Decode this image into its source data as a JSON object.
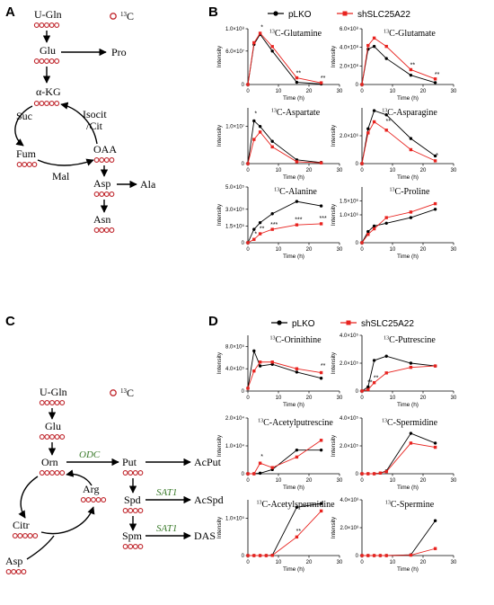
{
  "panels": {
    "A": "A",
    "B": "B",
    "C": "C",
    "D": "D"
  },
  "isotope_label": "13C",
  "colors": {
    "pLKO": "#000000",
    "shSLC25A22": "#e8231f",
    "carbon": "#c0272d",
    "enzyme": "#3a7a2a"
  },
  "legend": {
    "series1": "pLKO",
    "series2": "shSLC25A22"
  },
  "pathwayA": {
    "nodes": [
      {
        "id": "ugln",
        "label": "U-Gln",
        "circles": 5
      },
      {
        "id": "glu",
        "label": "Glu",
        "circles": 5
      },
      {
        "id": "pro",
        "label": "Pro",
        "circles": 0
      },
      {
        "id": "akg",
        "label": "α-KG",
        "circles": 5
      },
      {
        "id": "suc",
        "label": "Suc",
        "circles": 0
      },
      {
        "id": "isocit",
        "label": "Isocit",
        "circles": 0
      },
      {
        "id": "cit",
        "label": "/Cit",
        "circles": 0
      },
      {
        "id": "fum",
        "label": "Fum",
        "circles": 4
      },
      {
        "id": "oaa",
        "label": "OAA",
        "circles": 4
      },
      {
        "id": "mal",
        "label": "Mal",
        "circles": 0
      },
      {
        "id": "asp",
        "label": "Asp",
        "circles": 4
      },
      {
        "id": "ala",
        "label": "Ala",
        "circles": 0
      },
      {
        "id": "asn",
        "label": "Asn",
        "circles": 4
      }
    ]
  },
  "pathwayC": {
    "nodes": [
      {
        "id": "ugln",
        "label": "U-Gln",
        "circles": 5
      },
      {
        "id": "glu",
        "label": "Glu",
        "circles": 5
      },
      {
        "id": "orn",
        "label": "Orn",
        "circles": 5
      },
      {
        "id": "put",
        "label": "Put",
        "circles": 4
      },
      {
        "id": "acput",
        "label": "AcPut",
        "circles": 0
      },
      {
        "id": "arg",
        "label": "Arg",
        "circles": 5
      },
      {
        "id": "spd",
        "label": "Spd",
        "circles": 4
      },
      {
        "id": "acspd",
        "label": "AcSpd",
        "circles": 0
      },
      {
        "id": "citr",
        "label": "Citr",
        "circles": 5
      },
      {
        "id": "asp",
        "label": "Asp",
        "circles": 4
      },
      {
        "id": "spm",
        "label": "Spm",
        "circles": 4
      },
      {
        "id": "das",
        "label": "DAS",
        "circles": 0
      }
    ],
    "enzymes": [
      "ODC",
      "SAT1",
      "SAT1"
    ]
  },
  "chart_data": [
    {
      "id": "glutamine",
      "type": "line",
      "title_main": "C-Glutamine",
      "xlabel": "Time (h)",
      "ylabel": "Intensity",
      "xlim": [
        0,
        30
      ],
      "xticks": [
        "0",
        "10",
        "20",
        "30"
      ],
      "ylim": [
        0,
        100000000.0
      ],
      "yticks": [
        {
          "v": 0,
          "t": "0"
        },
        {
          "v": 60000000.0,
          "t": "6.0×10⁷"
        },
        {
          "v": 100000000.0,
          "t": "1.0×10⁸"
        }
      ],
      "x": [
        0,
        2,
        4,
        8,
        16,
        24
      ],
      "series": [
        {
          "name": "pLKO",
          "values": [
            0,
            72000000.0,
            90000000.0,
            60000000.0,
            4000000.0,
            1000000.0
          ]
        },
        {
          "name": "shSLC25A22",
          "values": [
            0,
            75000000.0,
            92000000.0,
            68000000.0,
            12000000.0,
            3000000.0
          ]
        }
      ],
      "sig": [
        {
          "x": 4,
          "y": 99000000.0,
          "t": "*"
        },
        {
          "x": 16,
          "y": 17000000.0,
          "t": "**"
        },
        {
          "x": 24,
          "y": 8000000.0,
          "t": "**"
        }
      ]
    },
    {
      "id": "glutamate",
      "type": "line",
      "title_main": "C-Glutamate",
      "xlabel": "Time (h)",
      "ylabel": "Intensity",
      "xlim": [
        0,
        30
      ],
      "xticks": [
        "0",
        "10",
        "20",
        "30"
      ],
      "ylim": [
        0,
        600000000.0
      ],
      "yticks": [
        {
          "v": 0,
          "t": "0"
        },
        {
          "v": 200000000.0,
          "t": "2.0×10⁸"
        },
        {
          "v": 400000000.0,
          "t": "4.0×10⁸"
        },
        {
          "v": 600000000.0,
          "t": "6.0×10⁸"
        }
      ],
      "x": [
        0,
        2,
        4,
        8,
        16,
        24
      ],
      "series": [
        {
          "name": "pLKO",
          "values": [
            0,
            380000000.0,
            410000000.0,
            280000000.0,
            100000000.0,
            20000000.0
          ]
        },
        {
          "name": "shSLC25A22",
          "values": [
            0,
            420000000.0,
            500000000.0,
            410000000.0,
            160000000.0,
            60000000.0
          ]
        }
      ],
      "sig": [
        {
          "x": 16,
          "y": 190000000.0,
          "t": "**"
        },
        {
          "x": 24,
          "y": 85000000.0,
          "t": "**"
        }
      ]
    },
    {
      "id": "aspartate",
      "type": "line",
      "title_main": "C-Aspartate",
      "xlabel": "Time (h)",
      "ylabel": "Intensity",
      "xlim": [
        0,
        30
      ],
      "xticks": [
        "0",
        "10",
        "20",
        "30"
      ],
      "ylim": [
        0,
        15000000.0
      ],
      "yticks": [
        {
          "v": 0,
          "t": "0"
        },
        {
          "v": 10000000.0,
          "t": "1.0×10⁷"
        }
      ],
      "x": [
        0,
        2,
        4,
        8,
        16,
        24
      ],
      "series": [
        {
          "name": "pLKO",
          "values": [
            0,
            11500000.0,
            10000000.0,
            6000000.0,
            1000000.0,
            300000.0
          ]
        },
        {
          "name": "shSLC25A22",
          "values": [
            0,
            6500000.0,
            8500000.0,
            4500000.0,
            500000.0,
            200000.0
          ]
        }
      ],
      "sig": [
        {
          "x": 2,
          "y": 13000000.0,
          "t": "*"
        }
      ]
    },
    {
      "id": "asparagine",
      "type": "line",
      "title_main": "C-Asparagine",
      "xlabel": "Time (h)",
      "ylabel": "Intensity",
      "xlim": [
        0,
        30
      ],
      "xticks": [
        "0",
        "10",
        "20",
        "30"
      ],
      "ylim": [
        0,
        4000000.0
      ],
      "yticks": [
        {
          "v": 0,
          "t": "0"
        },
        {
          "v": 2000000.0,
          "t": "2.0×10⁶"
        }
      ],
      "x": [
        0,
        2,
        4,
        8,
        16,
        24
      ],
      "series": [
        {
          "name": "pLKO",
          "values": [
            0,
            2500000.0,
            3800000.0,
            3500000.0,
            1800000.0,
            550000.0
          ]
        },
        {
          "name": "shSLC25A22",
          "values": [
            0,
            2200000.0,
            3000000.0,
            2400000.0,
            1000000.0,
            200000.0
          ]
        }
      ],
      "sig": [
        {
          "x": 8,
          "y": 2900000.0,
          "t": "**"
        },
        {
          "x": 24,
          "y": 450000.0,
          "t": "*"
        }
      ]
    },
    {
      "id": "alanine",
      "type": "line",
      "title_main": "C-Alanine",
      "xlabel": "Time (h)",
      "ylabel": "Intensity",
      "xlim": [
        0,
        30
      ],
      "xticks": [
        "0",
        "10",
        "20",
        "30"
      ],
      "ylim": [
        0,
        500000.0
      ],
      "yticks": [
        {
          "v": 0,
          "t": "0"
        },
        {
          "v": 150000.0,
          "t": "1.5×10⁵"
        },
        {
          "v": 300000.0,
          "t": "3.0×10⁵"
        },
        {
          "v": 500000.0,
          "t": "5.0×10⁵"
        }
      ],
      "x": [
        0,
        2,
        4,
        8,
        16,
        24
      ],
      "series": [
        {
          "name": "pLKO",
          "values": [
            0,
            120000.0,
            180000.0,
            260000.0,
            370000.0,
            330000.0
          ]
        },
        {
          "name": "shSLC25A22",
          "values": [
            0,
            30000.0,
            80000.0,
            120000.0,
            160000.0,
            170000.0
          ]
        }
      ],
      "sig": [
        {
          "x": 2,
          "y": 60000.0,
          "t": "*"
        },
        {
          "x": 4,
          "y": 110000.0,
          "t": "**"
        },
        {
          "x": 8,
          "y": 145000.0,
          "t": "***"
        },
        {
          "x": 16,
          "y": 190000.0,
          "t": "***"
        },
        {
          "x": 24,
          "y": 200000.0,
          "t": "***"
        }
      ]
    },
    {
      "id": "proline",
      "type": "line",
      "title_main": "C-Proline",
      "xlabel": "Time (h)",
      "ylabel": "Intensity",
      "xlim": [
        0,
        30
      ],
      "xticks": [
        "0",
        "10",
        "20",
        "30"
      ],
      "ylim": [
        0,
        2000000.0
      ],
      "yticks": [
        {
          "v": 0,
          "t": "0"
        },
        {
          "v": 1000000.0,
          "t": "1.0×10⁶"
        },
        {
          "v": 1500000.0,
          "t": "1.5×10⁶"
        }
      ],
      "x": [
        0,
        2,
        4,
        8,
        16,
        24
      ],
      "series": [
        {
          "name": "pLKO",
          "values": [
            0,
            400000.0,
            600000.0,
            700000.0,
            900000.0,
            1200000.0
          ]
        },
        {
          "name": "shSLC25A22",
          "values": [
            0,
            300000.0,
            500000.0,
            900000.0,
            1100000.0,
            1400000.0
          ]
        }
      ],
      "sig": []
    },
    {
      "id": "ornithine",
      "type": "line",
      "title_main": "C-Orinithine",
      "xlabel": "Time (h)",
      "ylabel": "Intensity",
      "xlim": [
        0,
        30
      ],
      "xticks": [
        "0",
        "10",
        "20",
        "30"
      ],
      "ylim": [
        0,
        1000000.0
      ],
      "yticks": [
        {
          "v": 0,
          "t": "0"
        },
        {
          "v": 400000.0,
          "t": "4.0×10⁵"
        },
        {
          "v": 800000.0,
          "t": "8.0×10⁵"
        }
      ],
      "x": [
        0,
        2,
        4,
        8,
        16,
        24
      ],
      "series": [
        {
          "name": "pLKO",
          "values": [
            50000.0,
            720000.0,
            450000.0,
            480000.0,
            340000.0,
            230000.0
          ]
        },
        {
          "name": "shSLC25A22",
          "values": [
            50000.0,
            360000.0,
            520000.0,
            520000.0,
            400000.0,
            330000.0
          ]
        }
      ],
      "sig": [
        {
          "x": 24,
          "y": 420000.0,
          "t": "**"
        }
      ]
    },
    {
      "id": "putrescine",
      "type": "line",
      "title_main": "C-Putrescine",
      "xlabel": "Time (h)",
      "ylabel": "Intensity",
      "xlim": [
        0,
        30
      ],
      "xticks": [
        "0",
        "10",
        "20",
        "30"
      ],
      "ylim": [
        0,
        400000.0
      ],
      "yticks": [
        {
          "v": 0,
          "t": "0"
        },
        {
          "v": 200000.0,
          "t": "2.0×10⁵"
        },
        {
          "v": 400000.0,
          "t": "4.0×10⁵"
        }
      ],
      "x": [
        0,
        2,
        4,
        8,
        16,
        24
      ],
      "series": [
        {
          "name": "pLKO",
          "values": [
            0,
            30000.0,
            220000.0,
            250000.0,
            200000.0,
            180000.0
          ]
        },
        {
          "name": "shSLC25A22",
          "values": [
            0,
            10000.0,
            60000.0,
            130000.0,
            170000.0,
            180000.0
          ]
        }
      ],
      "sig": [
        {
          "x": 2,
          "y": 50000.0,
          "t": "**"
        },
        {
          "x": 4,
          "y": 80000.0,
          "t": "**"
        }
      ]
    },
    {
      "id": "acetylputrescine",
      "type": "line",
      "title_main": "C-Acetylputrescine",
      "xlabel": "Time (h)",
      "ylabel": "Intensity",
      "xlim": [
        0,
        30
      ],
      "xticks": [
        "0",
        "10",
        "20",
        "30"
      ],
      "ylim": [
        0,
        20000.0
      ],
      "yticks": [
        {
          "v": 0,
          "t": "0"
        },
        {
          "v": 10000.0,
          "t": "1.0×10⁴"
        },
        {
          "v": 20000.0,
          "t": "2.0×10⁴"
        }
      ],
      "x": [
        0,
        2,
        4,
        8,
        16,
        24
      ],
      "series": [
        {
          "name": "pLKO",
          "values": [
            0,
            0,
            200,
            1500,
            8500,
            8500
          ]
        },
        {
          "name": "shSLC25A22",
          "values": [
            0,
            0,
            3800,
            2200,
            6000,
            12000
          ]
        }
      ],
      "sig": [
        {
          "x": 4,
          "y": 5500,
          "t": "*"
        }
      ]
    },
    {
      "id": "spermidine",
      "type": "line",
      "title_main": "C-Spermidine",
      "xlabel": "Time (h)",
      "ylabel": "Intensity",
      "xlim": [
        0,
        30
      ],
      "xticks": [
        "0",
        "10",
        "20",
        "30"
      ],
      "ylim": [
        0,
        400000.0
      ],
      "yticks": [
        {
          "v": 0,
          "t": "0"
        },
        {
          "v": 200000.0,
          "t": "2.0×10⁵"
        },
        {
          "v": 400000.0,
          "t": "4.0×10⁵"
        }
      ],
      "x": [
        0,
        2,
        4,
        6,
        8,
        16,
        24
      ],
      "series": [
        {
          "name": "pLKO",
          "values": [
            0,
            0,
            0,
            5000,
            20000.0,
            290000.0,
            220000.0
          ]
        },
        {
          "name": "shSLC25A22",
          "values": [
            0,
            0,
            0,
            5000,
            15000.0,
            220000.0,
            190000.0
          ]
        }
      ],
      "sig": []
    },
    {
      "id": "acetylspermidine",
      "type": "line",
      "title_main": "C-Acetylspermidine",
      "xlabel": "Time (h)",
      "ylabel": "Intensity",
      "xlim": [
        0,
        30
      ],
      "xticks": [
        "0",
        "10",
        "20",
        "30"
      ],
      "ylim": [
        0,
        150000.0
      ],
      "yticks": [
        {
          "v": 0,
          "t": "0"
        },
        {
          "v": 100000.0,
          "t": "1.0×10⁵"
        }
      ],
      "x": [
        0,
        2,
        4,
        6,
        8,
        16,
        24
      ],
      "series": [
        {
          "name": "pLKO",
          "values": [
            0,
            0,
            0,
            0,
            1000,
            130000.0,
            140000.0
          ]
        },
        {
          "name": "shSLC25A22",
          "values": [
            0,
            0,
            0,
            0,
            500,
            50000.0,
            120000.0
          ]
        }
      ],
      "sig": [
        {
          "x": 16,
          "y": 60000.0,
          "t": "**"
        }
      ]
    },
    {
      "id": "spermine",
      "type": "line",
      "title_main": "C-Spermine",
      "xlabel": "Time (h)",
      "ylabel": "Intensity",
      "xlim": [
        0,
        30
      ],
      "xticks": [
        "0",
        "10",
        "20",
        "30"
      ],
      "ylim": [
        0,
        4000.0
      ],
      "yticks": [
        {
          "v": 0,
          "t": "0"
        },
        {
          "v": 2000.0,
          "t": "2.0×10³"
        },
        {
          "v": 4000.0,
          "t": "4.0×10³"
        }
      ],
      "x": [
        0,
        2,
        4,
        6,
        8,
        16,
        24
      ],
      "series": [
        {
          "name": "pLKO",
          "values": [
            0,
            0,
            0,
            0,
            0,
            50,
            2500
          ]
        },
        {
          "name": "shSLC25A22",
          "values": [
            0,
            0,
            0,
            0,
            0,
            30,
            500
          ]
        }
      ],
      "sig": []
    }
  ]
}
